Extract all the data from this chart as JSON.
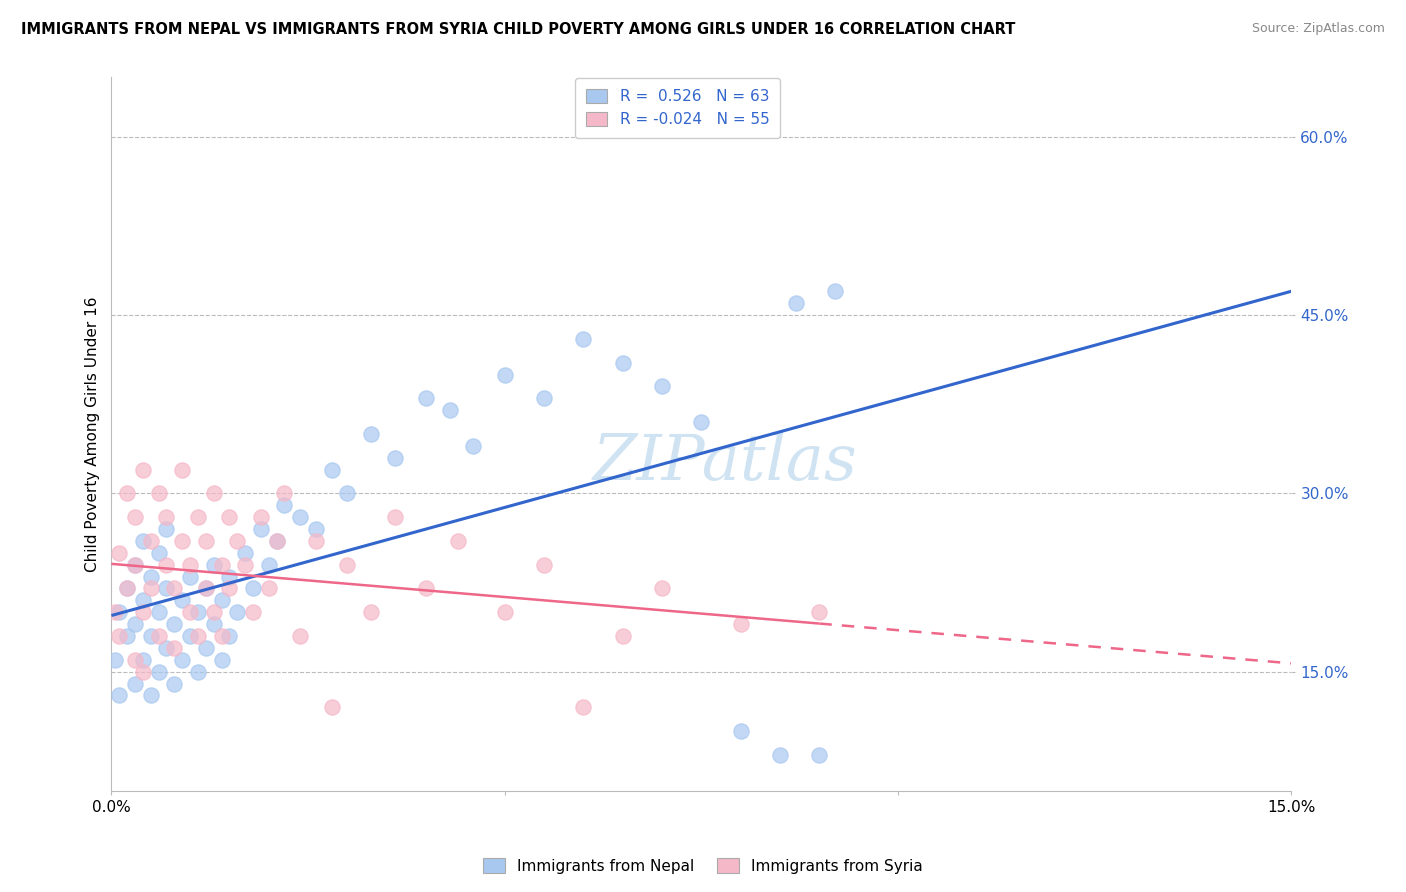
{
  "title": "IMMIGRANTS FROM NEPAL VS IMMIGRANTS FROM SYRIA CHILD POVERTY AMONG GIRLS UNDER 16 CORRELATION CHART",
  "source": "Source: ZipAtlas.com",
  "ylabel": "Child Poverty Among Girls Under 16",
  "ytick_values": [
    0.15,
    0.3,
    0.45,
    0.6
  ],
  "xlim": [
    0.0,
    0.15
  ],
  "ylim": [
    0.05,
    0.65
  ],
  "r_nepal": 0.526,
  "n_nepal": 63,
  "r_syria": -0.024,
  "n_syria": 55,
  "nepal_color": "#a8c8f0",
  "syria_color": "#f5b8c8",
  "nepal_line_color": "#3366cc",
  "syria_line_color": "#ee6688",
  "watermark_text": "ZIPatlas",
  "nepal_x": [
    0.0005,
    0.001,
    0.001,
    0.002,
    0.002,
    0.003,
    0.003,
    0.003,
    0.004,
    0.004,
    0.004,
    0.005,
    0.005,
    0.005,
    0.006,
    0.006,
    0.006,
    0.007,
    0.007,
    0.007,
    0.008,
    0.008,
    0.009,
    0.009,
    0.01,
    0.01,
    0.011,
    0.011,
    0.012,
    0.012,
    0.013,
    0.013,
    0.014,
    0.014,
    0.015,
    0.015,
    0.016,
    0.017,
    0.018,
    0.019,
    0.02,
    0.021,
    0.022,
    0.024,
    0.026,
    0.028,
    0.03,
    0.033,
    0.036,
    0.04,
    0.043,
    0.046,
    0.05,
    0.055,
    0.06,
    0.065,
    0.07,
    0.075,
    0.08,
    0.085,
    0.087,
    0.09,
    0.092
  ],
  "nepal_y": [
    0.16,
    0.13,
    0.2,
    0.18,
    0.22,
    0.14,
    0.19,
    0.24,
    0.16,
    0.21,
    0.26,
    0.13,
    0.18,
    0.23,
    0.15,
    0.2,
    0.25,
    0.17,
    0.22,
    0.27,
    0.14,
    0.19,
    0.16,
    0.21,
    0.18,
    0.23,
    0.15,
    0.2,
    0.17,
    0.22,
    0.19,
    0.24,
    0.16,
    0.21,
    0.18,
    0.23,
    0.2,
    0.25,
    0.22,
    0.27,
    0.24,
    0.26,
    0.29,
    0.28,
    0.27,
    0.32,
    0.3,
    0.35,
    0.33,
    0.38,
    0.37,
    0.34,
    0.4,
    0.38,
    0.43,
    0.41,
    0.39,
    0.36,
    0.1,
    0.08,
    0.46,
    0.08,
    0.47
  ],
  "syria_x": [
    0.0005,
    0.001,
    0.001,
    0.002,
    0.002,
    0.003,
    0.003,
    0.003,
    0.004,
    0.004,
    0.004,
    0.005,
    0.005,
    0.006,
    0.006,
    0.007,
    0.007,
    0.008,
    0.008,
    0.009,
    0.009,
    0.01,
    0.01,
    0.011,
    0.011,
    0.012,
    0.012,
    0.013,
    0.013,
    0.014,
    0.014,
    0.015,
    0.015,
    0.016,
    0.017,
    0.018,
    0.019,
    0.02,
    0.021,
    0.022,
    0.024,
    0.026,
    0.028,
    0.03,
    0.033,
    0.036,
    0.04,
    0.044,
    0.05,
    0.055,
    0.06,
    0.065,
    0.07,
    0.08,
    0.09
  ],
  "syria_y": [
    0.2,
    0.25,
    0.18,
    0.3,
    0.22,
    0.28,
    0.16,
    0.24,
    0.32,
    0.2,
    0.15,
    0.26,
    0.22,
    0.3,
    0.18,
    0.24,
    0.28,
    0.22,
    0.17,
    0.26,
    0.32,
    0.2,
    0.24,
    0.18,
    0.28,
    0.22,
    0.26,
    0.3,
    0.2,
    0.24,
    0.18,
    0.28,
    0.22,
    0.26,
    0.24,
    0.2,
    0.28,
    0.22,
    0.26,
    0.3,
    0.18,
    0.26,
    0.12,
    0.24,
    0.2,
    0.28,
    0.22,
    0.26,
    0.2,
    0.24,
    0.12,
    0.18,
    0.22,
    0.19,
    0.2
  ]
}
